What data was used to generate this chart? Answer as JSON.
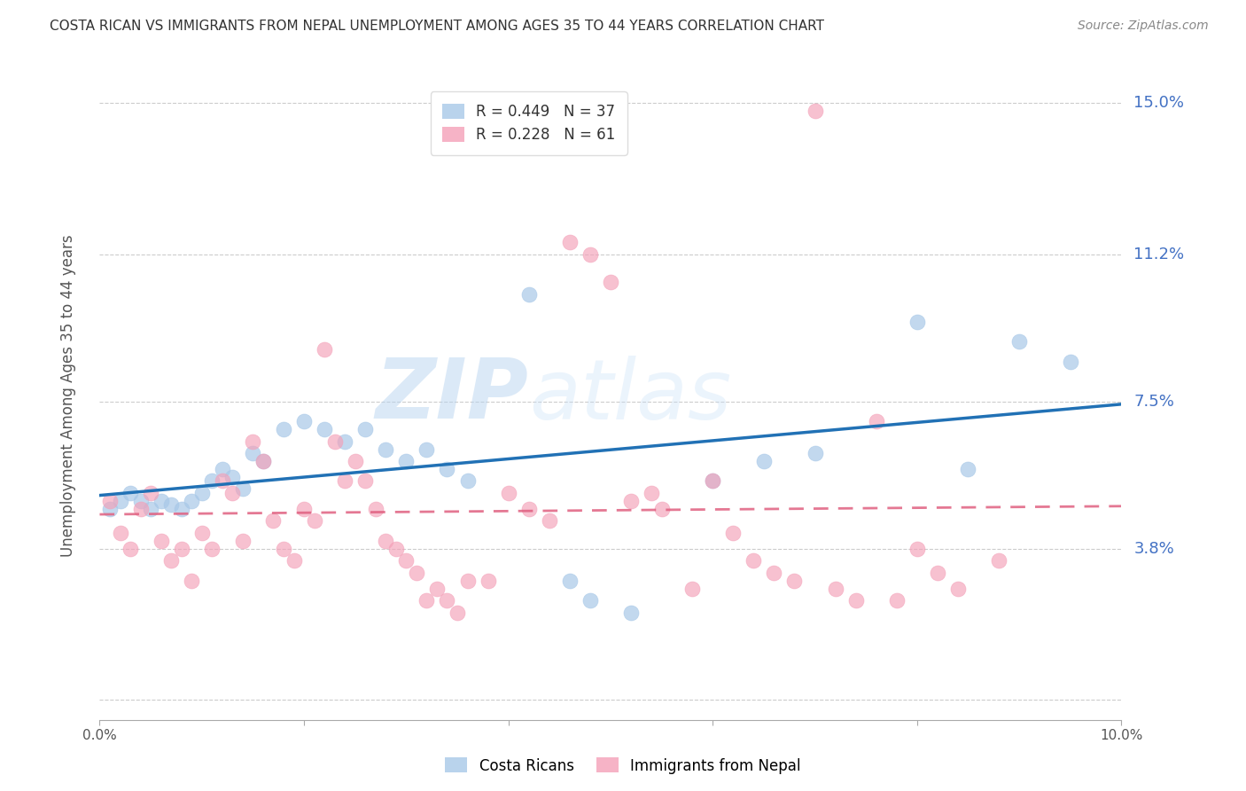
{
  "title": "COSTA RICAN VS IMMIGRANTS FROM NEPAL UNEMPLOYMENT AMONG AGES 35 TO 44 YEARS CORRELATION CHART",
  "source": "Source: ZipAtlas.com",
  "ylabel": "Unemployment Among Ages 35 to 44 years",
  "xlim": [
    0.0,
    0.1
  ],
  "ylim": [
    -0.005,
    0.158
  ],
  "yticks": [
    0.0,
    0.038,
    0.075,
    0.112,
    0.15
  ],
  "ytick_labels": [
    "",
    "3.8%",
    "7.5%",
    "11.2%",
    "15.0%"
  ],
  "xticks": [
    0.0,
    0.02,
    0.04,
    0.06,
    0.08,
    0.1
  ],
  "xtick_labels": [
    "0.0%",
    "",
    "",
    "",
    "",
    "10.0%"
  ],
  "blue_color": "#a8c8e8",
  "pink_color": "#f4a0b8",
  "blue_line_color": "#2171b5",
  "pink_line_color": "#e06080",
  "watermark_zip": "ZIP",
  "watermark_atlas": "atlas",
  "legend_R1": "R = 0.449",
  "legend_N1": "N = 37",
  "legend_R2": "R = 0.228",
  "legend_N2": "N = 61",
  "costa_ricans_x": [
    0.001,
    0.002,
    0.003,
    0.004,
    0.005,
    0.006,
    0.007,
    0.008,
    0.009,
    0.01,
    0.011,
    0.012,
    0.013,
    0.014,
    0.015,
    0.016,
    0.018,
    0.02,
    0.022,
    0.024,
    0.026,
    0.028,
    0.03,
    0.032,
    0.034,
    0.036,
    0.042,
    0.046,
    0.048,
    0.052,
    0.06,
    0.065,
    0.07,
    0.08,
    0.085,
    0.09,
    0.095
  ],
  "costa_ricans_y": [
    0.048,
    0.05,
    0.052,
    0.05,
    0.048,
    0.05,
    0.049,
    0.048,
    0.05,
    0.052,
    0.055,
    0.058,
    0.056,
    0.053,
    0.062,
    0.06,
    0.068,
    0.07,
    0.068,
    0.065,
    0.068,
    0.063,
    0.06,
    0.063,
    0.058,
    0.055,
    0.102,
    0.03,
    0.025,
    0.022,
    0.055,
    0.06,
    0.062,
    0.095,
    0.058,
    0.09,
    0.085
  ],
  "nepal_x": [
    0.001,
    0.002,
    0.003,
    0.004,
    0.005,
    0.006,
    0.007,
    0.008,
    0.009,
    0.01,
    0.011,
    0.012,
    0.013,
    0.014,
    0.015,
    0.016,
    0.017,
    0.018,
    0.019,
    0.02,
    0.021,
    0.022,
    0.023,
    0.024,
    0.025,
    0.026,
    0.027,
    0.028,
    0.029,
    0.03,
    0.031,
    0.032,
    0.033,
    0.034,
    0.035,
    0.036,
    0.038,
    0.04,
    0.042,
    0.044,
    0.046,
    0.048,
    0.05,
    0.052,
    0.054,
    0.055,
    0.058,
    0.06,
    0.062,
    0.064,
    0.066,
    0.068,
    0.07,
    0.072,
    0.074,
    0.076,
    0.078,
    0.08,
    0.082,
    0.084,
    0.088
  ],
  "nepal_y": [
    0.05,
    0.042,
    0.038,
    0.048,
    0.052,
    0.04,
    0.035,
    0.038,
    0.03,
    0.042,
    0.038,
    0.055,
    0.052,
    0.04,
    0.065,
    0.06,
    0.045,
    0.038,
    0.035,
    0.048,
    0.045,
    0.088,
    0.065,
    0.055,
    0.06,
    0.055,
    0.048,
    0.04,
    0.038,
    0.035,
    0.032,
    0.025,
    0.028,
    0.025,
    0.022,
    0.03,
    0.03,
    0.052,
    0.048,
    0.045,
    0.115,
    0.112,
    0.105,
    0.05,
    0.052,
    0.048,
    0.028,
    0.055,
    0.042,
    0.035,
    0.032,
    0.03,
    0.148,
    0.028,
    0.025,
    0.07,
    0.025,
    0.038,
    0.032,
    0.028,
    0.035
  ]
}
